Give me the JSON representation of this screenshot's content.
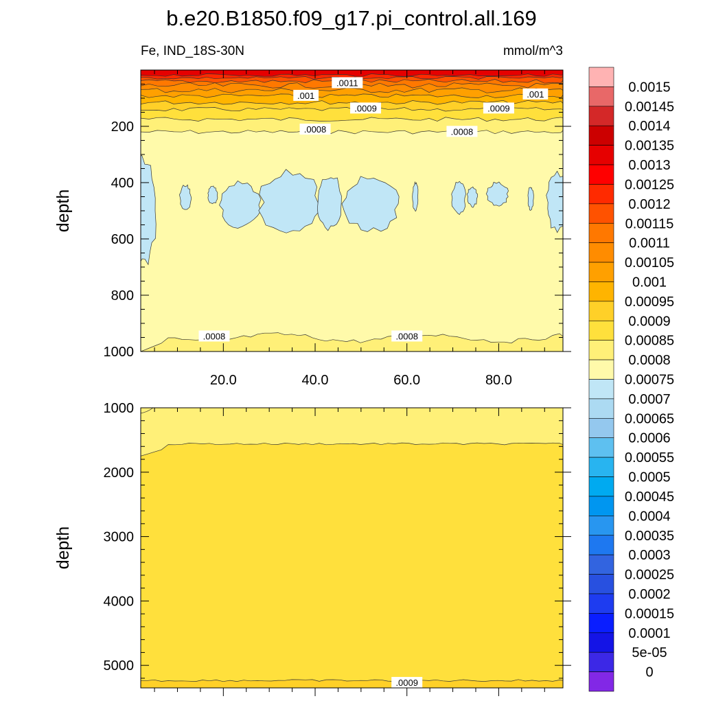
{
  "chart_data": {
    "type": "heatmap",
    "title": "b.e20.B1850.f09_g17.pi_control.all.169",
    "left_string": "Fe, IND_18S-30N",
    "right_string": "mmol/m^3",
    "upper_panel": {
      "ylabel": "depth",
      "xlim": [
        2,
        94
      ],
      "ylim": [
        1000,
        0
      ],
      "x_ticks": [
        20,
        40,
        60,
        80
      ],
      "x_tick_labels": [
        "20.0",
        "40.0",
        "60.0",
        "80.0"
      ],
      "y_ticks": [
        200,
        400,
        600,
        800,
        1000
      ],
      "y_tick_labels": [
        "200",
        "400",
        "600",
        "800",
        "1000"
      ],
      "contour_labels": [
        {
          "text": ".0011",
          "x": 47,
          "y": 45
        },
        {
          "text": ".001",
          "x": 38,
          "y": 90
        },
        {
          "text": ".001",
          "x": 88,
          "y": 85
        },
        {
          "text": ".0009",
          "x": 51,
          "y": 135
        },
        {
          "text": ".0009",
          "x": 80,
          "y": 135
        },
        {
          "text": ".0008",
          "x": 40,
          "y": 210
        },
        {
          "text": ".0008",
          "x": 72,
          "y": 218
        },
        {
          "text": ".0008",
          "x": 18,
          "y": 945
        },
        {
          "text": ".0008",
          "x": 60,
          "y": 945
        }
      ]
    },
    "lower_panel": {
      "ylabel": "depth",
      "xlim": [
        2,
        94
      ],
      "ylim": [
        5350,
        1000
      ],
      "y_ticks": [
        1000,
        2000,
        3000,
        4000,
        5000
      ],
      "y_tick_labels": [
        "1000",
        "2000",
        "3000",
        "4000",
        "5000"
      ],
      "contour_labels": [
        {
          "text": ".0009",
          "x": 60,
          "y": 5265
        }
      ]
    },
    "colorbar": {
      "labels": [
        "0.0015",
        "0.00145",
        "0.0014",
        "0.00135",
        "0.0013",
        "0.00125",
        "0.0012",
        "0.00115",
        "0.0011",
        "0.00105",
        "0.001",
        "0.00095",
        "0.0009",
        "0.00085",
        "0.0008",
        "0.00075",
        "0.0007",
        "0.00065",
        "0.0006",
        "0.00055",
        "0.0005",
        "0.00045",
        "0.0004",
        "0.00035",
        "0.0003",
        "0.00025",
        "0.0002",
        "0.00015",
        "0.0001",
        "5e-05",
        "0"
      ],
      "colors": [
        "#ffb3b3",
        "#e86868",
        "#d42828",
        "#cc0000",
        "#e60000",
        "#ff0000",
        "#ff2a00",
        "#ff5200",
        "#ff7800",
        "#ff8c00",
        "#ffa000",
        "#ffb400",
        "#ffd028",
        "#ffe03c",
        "#fff078",
        "#fffaaa",
        "#c0e6f6",
        "#acdaf2",
        "#94c8ee",
        "#5ec0f0",
        "#28b4f0",
        "#00aaf0",
        "#0096f0",
        "#2896f0",
        "#1e78f0",
        "#3264e0",
        "#2850e0",
        "#1e3cf0",
        "#0a1eff",
        "#1414e6",
        "#3c28e6",
        "#8228e6"
      ]
    }
  }
}
